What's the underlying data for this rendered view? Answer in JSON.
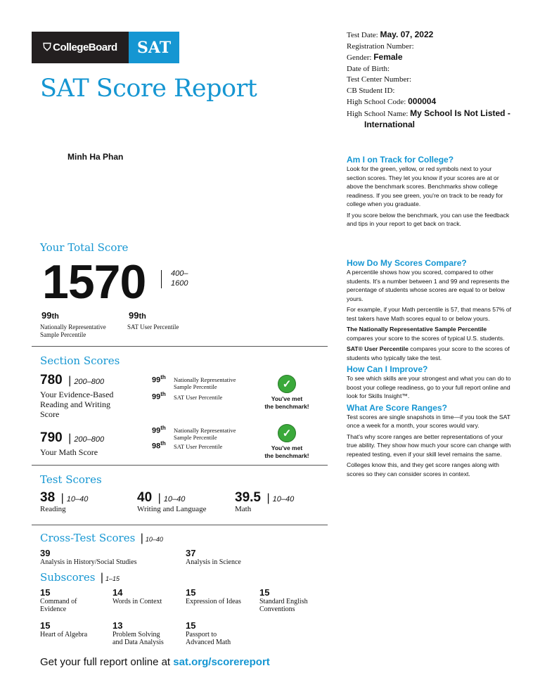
{
  "logo": {
    "collegeboard": "CollegeBoard",
    "sat": "SAT"
  },
  "title": "SAT Score Report",
  "student_name": "Minh Ha Phan",
  "info": {
    "test_date_label": "Test Date:",
    "test_date": "May. 07, 2022",
    "registration_label": "Registration Number:",
    "gender_label": "Gender:",
    "gender": "Female",
    "dob_label": "Date of Birth:",
    "test_center_label": "Test Center Number:",
    "cb_id_label": "CB Student ID:",
    "hs_code_label": "High School Code:",
    "hs_code": "000004",
    "hs_name_label": "High School Name:",
    "hs_name": "My School Is Not Listed -",
    "hs_name_2": "International"
  },
  "total": {
    "heading": "Your Total Score",
    "score": "1570",
    "range": "400–",
    "range2": "1600",
    "nat_pct": "99",
    "nat_label": "Nationally Representative",
    "nat_label2": "Sample Percentile",
    "user_pct": "99",
    "user_label": "SAT User Percentile",
    "th": "th"
  },
  "sections": {
    "heading": "Section Scores",
    "items": [
      {
        "score": "780",
        "range": "200–800",
        "label": "Your Evidence-Based",
        "label2": "Reading and Writing",
        "label3": "Score",
        "nat_pct": "99",
        "user_pct": "99"
      },
      {
        "score": "790",
        "range": "200–800",
        "label": "Your Math Score",
        "label2": "",
        "label3": "",
        "nat_pct": "99",
        "user_pct": "98"
      }
    ],
    "nat_label": "Nationally Representative",
    "nat_label2": "Sample Percentile",
    "user_label": "SAT User Percentile",
    "benchmark": "You've met",
    "benchmark2": "the benchmark!",
    "th": "th"
  },
  "tests": {
    "heading": "Test Scores",
    "items": [
      {
        "score": "38",
        "range": "10–40",
        "label": "Reading"
      },
      {
        "score": "40",
        "range": "10–40",
        "label": "Writing and Language"
      },
      {
        "score": "39.5",
        "range": "10–40",
        "label": "Math"
      }
    ]
  },
  "cross": {
    "heading": "Cross-Test Scores",
    "range": "10–40",
    "items": [
      {
        "score": "39",
        "label": "Analysis in History/Social Studies"
      },
      {
        "score": "37",
        "label": "Analysis in Science"
      }
    ]
  },
  "subscores": {
    "heading": "Subscores",
    "range": "1–15",
    "items": [
      {
        "score": "15",
        "label": "Command of",
        "label2": "Evidence"
      },
      {
        "score": "14",
        "label": "Words in Context",
        "label2": ""
      },
      {
        "score": "15",
        "label": "Expression of Ideas",
        "label2": ""
      },
      {
        "score": "15",
        "label": "Standard English",
        "label2": "Conventions"
      },
      {
        "score": "15",
        "label": "Heart of Algebra",
        "label2": ""
      },
      {
        "score": "13",
        "label": "Problem Solving",
        "label2": "and Data Analysis"
      },
      {
        "score": "15",
        "label": "Passport to",
        "label2": "Advanced Math"
      }
    ]
  },
  "footer": {
    "text": "Get your full report online at ",
    "link": "sat.org/scorereport"
  },
  "sidebar": {
    "track_heading": "Am I on Track for College?",
    "track_p1": "Look for the green, yellow, or red symbols next to your section scores. They let you know if your scores are at or above the benchmark scores. Benchmarks show college readiness. If you see green, you're on track to be ready for college when you graduate.",
    "track_p2": "If you score below the benchmark, you can use the feedback and tips in your report to get back on track.",
    "compare_heading": "How Do My Scores Compare?",
    "compare_p1": "A percentile shows how you scored, compared to other students. It's a number between 1 and 99 and represents the percentage of students whose scores are equal to or below yours.",
    "compare_p2": "For example, if your Math percentile is 57, that means 57% of test takers have Math scores equal to or below yours.",
    "compare_p3_bold": "The Nationally Representative Sample Percentile",
    "compare_p3": " compares your score to the scores of typical U.S. students.",
    "compare_p4_bold": "SAT® User Percentile",
    "compare_p4": " compares your score to the scores of students who typically take the test.",
    "improve_heading": "How Can I Improve?",
    "improve_p1": "To see which skills are your strongest and what you can do to boost your college readiness, go to your full report online and look for Skills Insight™.",
    "ranges_heading": "What Are Score Ranges?",
    "ranges_p1": "Test scores are single snapshots in time—if you took the SAT once a week for a month, your scores would vary.",
    "ranges_p2": "That's why score ranges are better representations of your true ability. They show how much your score can change with repeated testing, even if your skill level remains the same.",
    "ranges_p3": "Colleges know this, and they get score ranges along with scores so they can consider scores in context."
  },
  "colors": {
    "accent": "#1596d2",
    "benchmark_green": "#3aa93a",
    "logo_dark": "#231f20"
  }
}
